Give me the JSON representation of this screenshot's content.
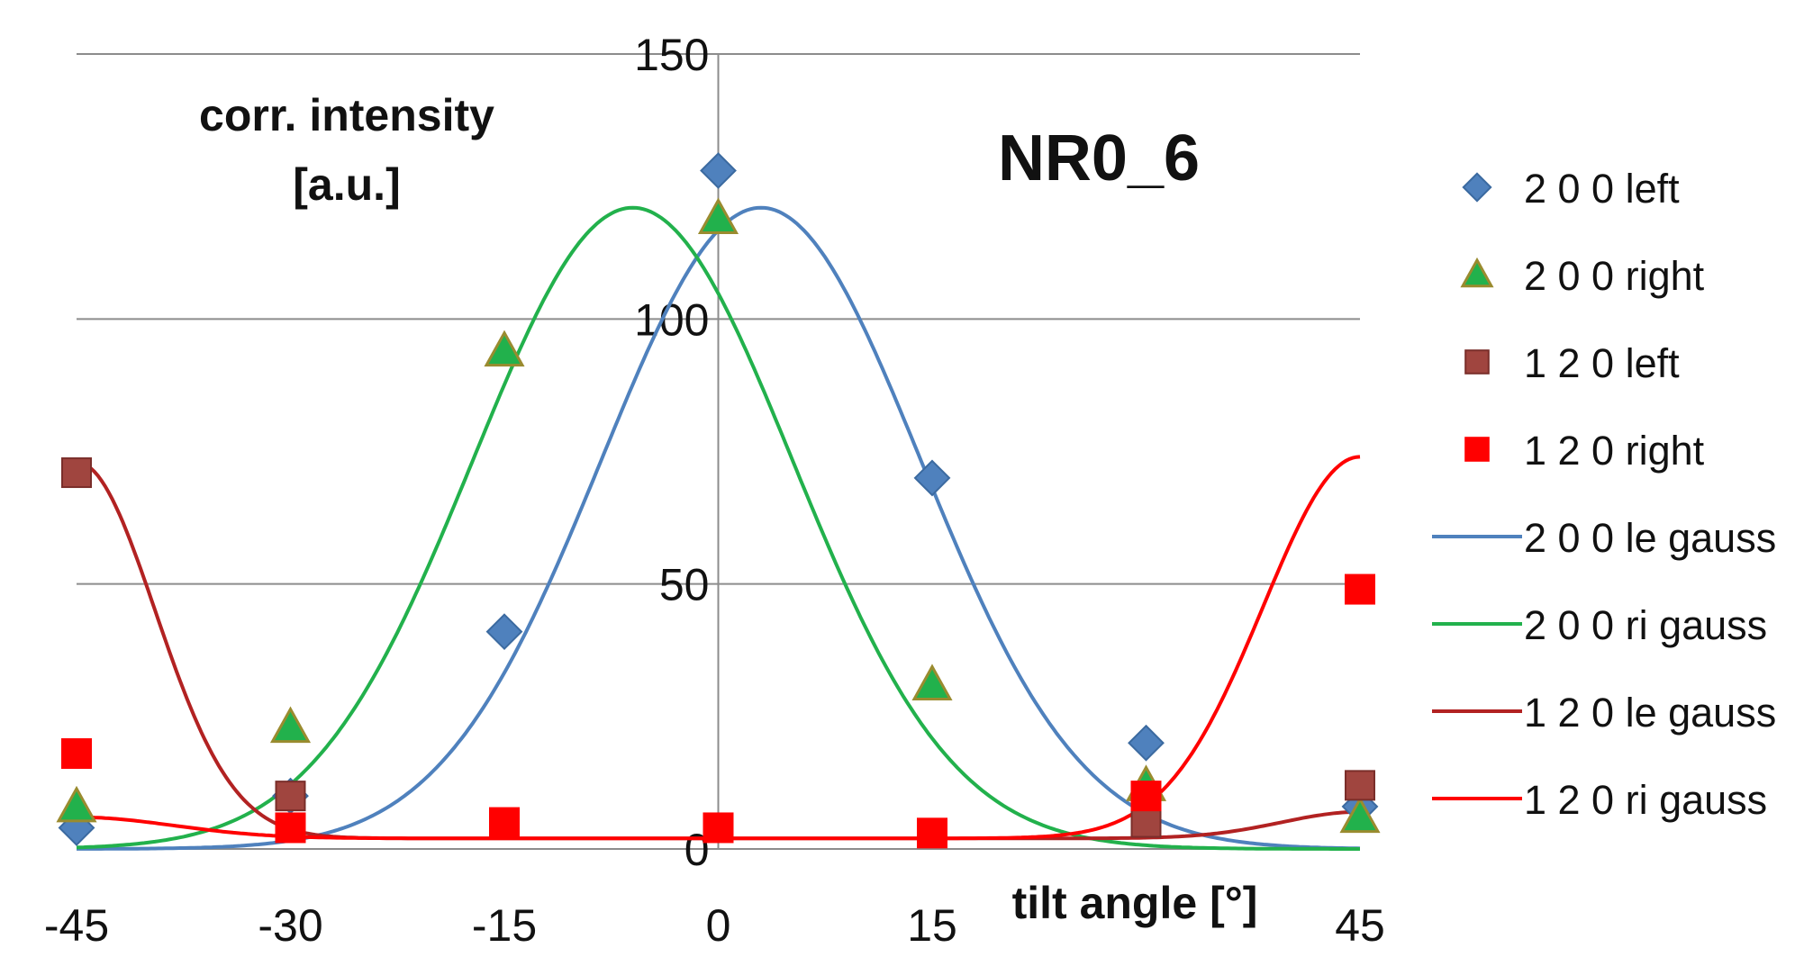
{
  "chart_data": {
    "type": "scatter",
    "title": "NR0_6",
    "ylabel_line1": "corr. intensity",
    "ylabel_line2": "[a.u.]",
    "xlabel": "tilt angle [°]",
    "xlim": [
      -45,
      45
    ],
    "ylim": [
      0,
      150
    ],
    "xticks": [
      "-45",
      "-30",
      "-15",
      "0",
      "15",
      "",
      "45"
    ],
    "xtick_values": [
      -45,
      -30,
      -15,
      0,
      15,
      30,
      45
    ],
    "yticks": [
      "0",
      "50",
      "100",
      "150"
    ],
    "ytick_values": [
      0,
      50,
      100,
      150
    ],
    "grid": true,
    "legend_position": "right",
    "x": [
      -45,
      -30,
      -15,
      0,
      15,
      30,
      45
    ],
    "series": [
      {
        "name": "2 0 0 left",
        "kind": "marker",
        "marker": "diamond",
        "color": "#4f81bd",
        "edge": "#3b6aa0",
        "values": [
          4,
          10,
          41,
          128,
          70,
          20,
          8
        ]
      },
      {
        "name": "2 0 0 right",
        "kind": "marker",
        "marker": "triangle",
        "color": "#22b14c",
        "edge": "#9a8b2f",
        "values": [
          8,
          23,
          94,
          119,
          31,
          12,
          6
        ]
      },
      {
        "name": "1 2 0 left",
        "kind": "marker",
        "marker": "square",
        "color": "#a0453f",
        "edge": "#7a2e2a",
        "values": [
          71,
          10,
          null,
          null,
          null,
          5,
          12
        ]
      },
      {
        "name": "1 2 0 right",
        "kind": "marker",
        "marker": "square",
        "color": "#ff0000",
        "edge": "#ff0000",
        "values": [
          18,
          4,
          5,
          4,
          3,
          10,
          49
        ]
      },
      {
        "name": "2 0 0 le gauss",
        "kind": "line",
        "color": "#4f81bd",
        "fit": {
          "baseline": 0,
          "amplitude": 121,
          "center": 3,
          "sigma": 11.2
        }
      },
      {
        "name": "2 0 0 ri gauss",
        "kind": "line",
        "color": "#22b14c",
        "fit": {
          "baseline": 0,
          "amplitude": 121,
          "center": -6,
          "sigma": 11.2
        }
      },
      {
        "name": "1 2 0 le gauss",
        "kind": "line",
        "color": "#b22222",
        "fit_sum": [
          {
            "baseline": 2,
            "amplitude": 71,
            "center": -45,
            "sigma": 5.5
          },
          {
            "baseline": 0,
            "amplitude": 5,
            "center": 45,
            "sigma": 5.5
          }
        ]
      },
      {
        "name": "1 2 0 ri gauss",
        "kind": "line",
        "color": "#ff0000",
        "fit_sum": [
          {
            "baseline": 2,
            "amplitude": 72,
            "center": 45,
            "sigma": 6.8
          },
          {
            "baseline": 0,
            "amplitude": 4,
            "center": -45,
            "sigma": 6.8
          }
        ]
      }
    ]
  }
}
